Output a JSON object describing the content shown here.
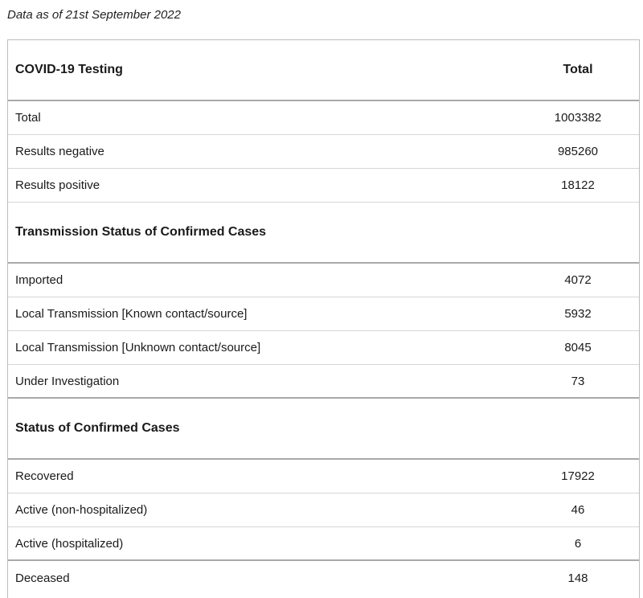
{
  "note": "Data as of 21st September 2022",
  "table": {
    "header": {
      "label": "COVID-19 Testing",
      "value": "Total"
    },
    "testing": [
      {
        "label": "Total",
        "value": "1003382"
      },
      {
        "label": "Results negative",
        "value": "985260"
      },
      {
        "label": "Results positive",
        "value": "18122"
      }
    ],
    "transmission": {
      "title": "Transmission Status of Confirmed Cases",
      "rows": [
        {
          "label": "Imported",
          "value": "4072"
        },
        {
          "label": "Local Transmission [Known contact/source]",
          "value": "5932"
        },
        {
          "label": "Local Transmission [Unknown contact/source]",
          "value": "8045"
        },
        {
          "label": "Under Investigation",
          "value": "73"
        }
      ]
    },
    "status": {
      "title": "Status of Confirmed Cases",
      "rows": [
        {
          "label": "Recovered",
          "value": "17922"
        },
        {
          "label": "Active (non-hospitalized)",
          "value": "46"
        },
        {
          "label": "Active (hospitalized)",
          "value": "6"
        },
        {
          "label": "Deceased",
          "value": "148"
        }
      ]
    }
  }
}
